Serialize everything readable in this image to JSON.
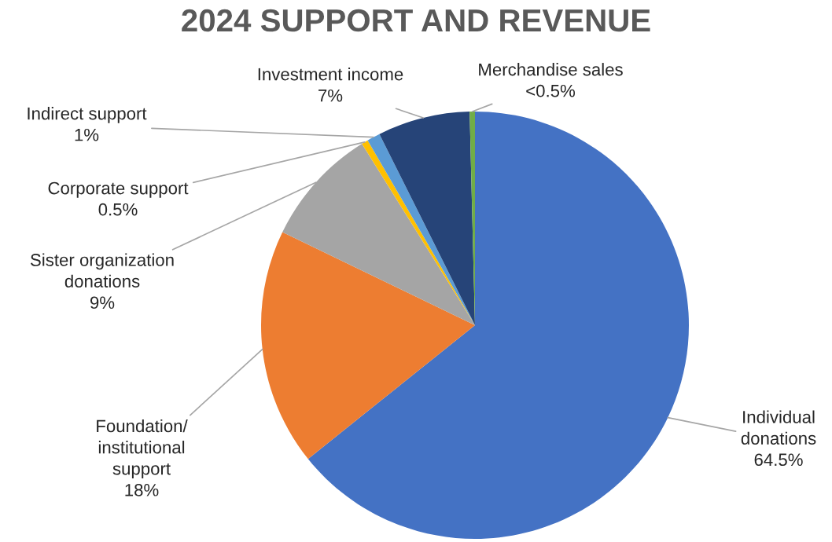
{
  "chart_data": {
    "type": "pie",
    "title": "2024 SUPPORT AND REVENUE",
    "categories": [
      "Individual\ndonations",
      "Foundation/\ninstitutional\nsupport",
      "Sister organization\ndonations",
      "Corporate support",
      "Indirect support",
      "Investment income",
      "Merchandise sales"
    ],
    "values": [
      64.5,
      18,
      9,
      0.5,
      1,
      7,
      0.4
    ],
    "value_labels": [
      "64.5%",
      "18%",
      "9%",
      "0.5%",
      "1%",
      "7%",
      "<0.5%"
    ],
    "colors": [
      "#4472c4",
      "#ed7d31",
      "#a5a5a5",
      "#ffc000",
      "#5b9bd5",
      "#264478",
      "#70ad47"
    ],
    "legend": false
  }
}
